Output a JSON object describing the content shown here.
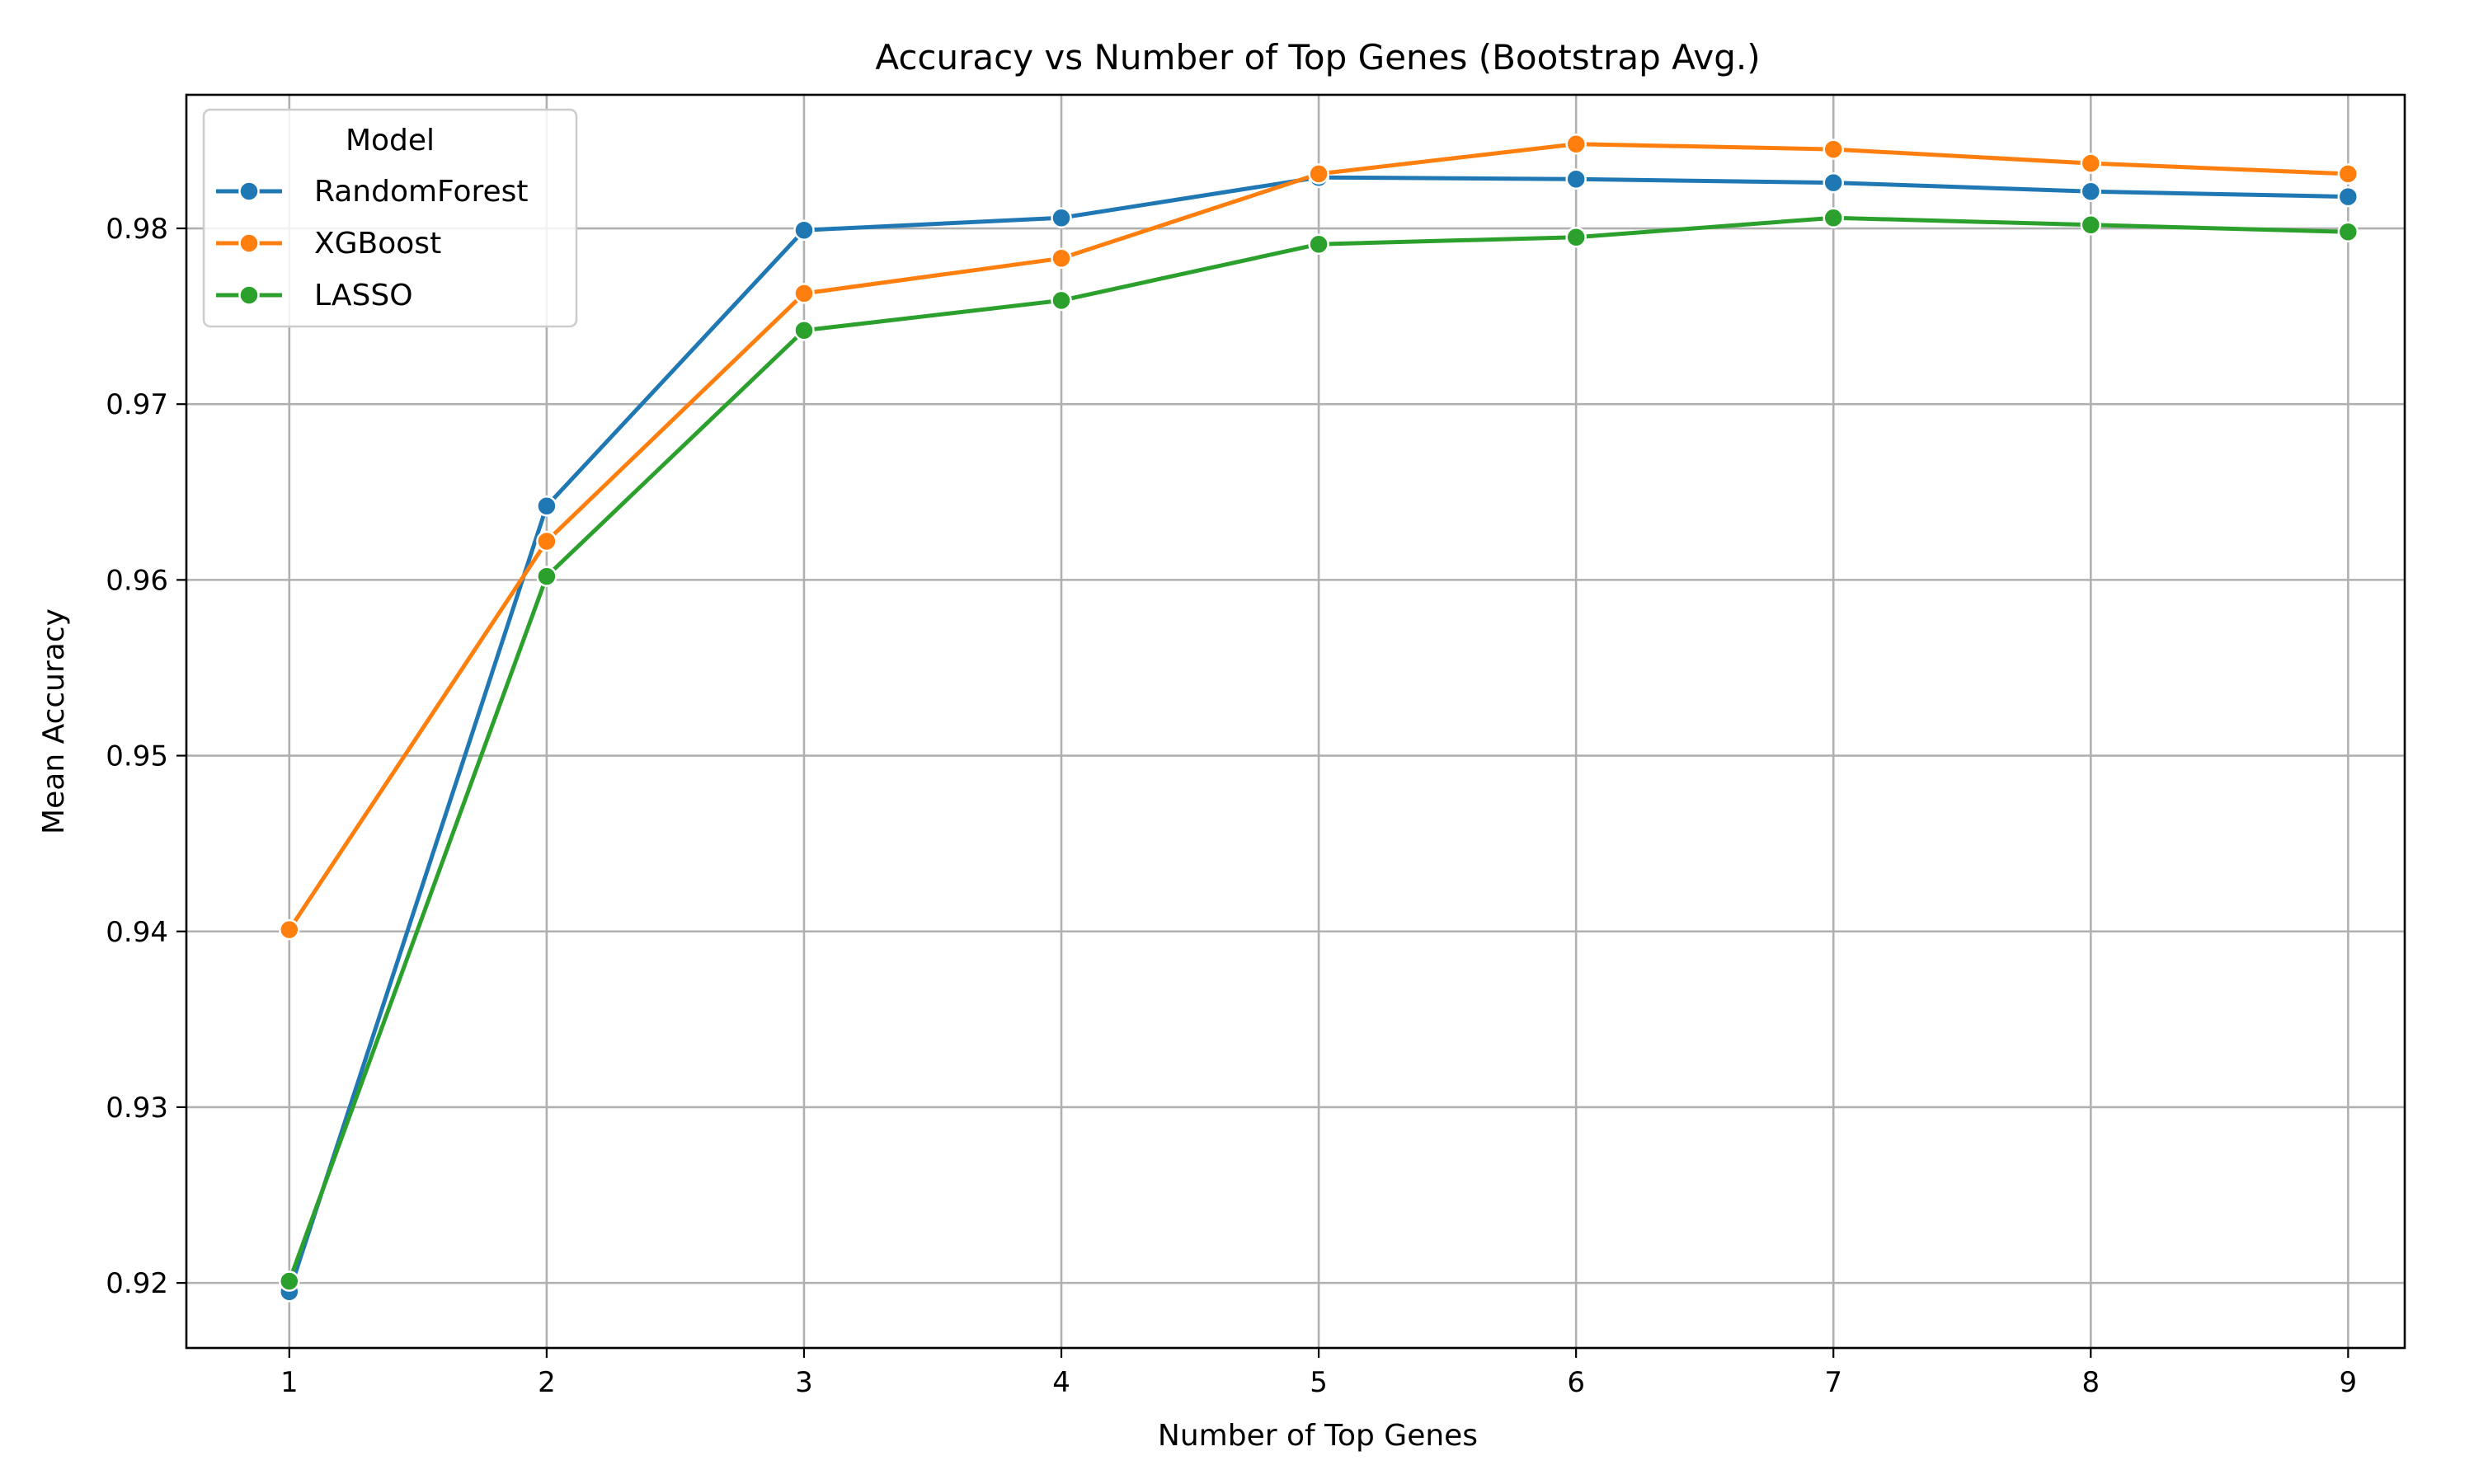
{
  "chart_data": {
    "type": "line",
    "title": "Accuracy vs Number of Top Genes (Bootstrap Avg.)",
    "xlabel": "Number of Top Genes",
    "ylabel": "Mean Accuracy",
    "x": [
      1,
      2,
      3,
      4,
      5,
      6,
      7,
      8,
      9
    ],
    "x_tick_labels": [
      "1",
      "2",
      "3",
      "4",
      "5",
      "6",
      "7",
      "8",
      "9"
    ],
    "xlim": [
      0.6,
      9.22
    ],
    "ylim": [
      0.9163,
      0.9876
    ],
    "y_ticks": [
      0.92,
      0.93,
      0.94,
      0.95,
      0.96,
      0.97,
      0.98
    ],
    "y_tick_labels": [
      "0.92",
      "0.93",
      "0.94",
      "0.95",
      "0.96",
      "0.97",
      "0.98"
    ],
    "grid": true,
    "legend": {
      "title": "Model",
      "placement": "top-left"
    },
    "series": [
      {
        "name": "RandomForest",
        "color": "#1f77b4",
        "values": [
          0.9195,
          0.9642,
          0.9799,
          0.9806,
          0.9829,
          0.9828,
          0.9826,
          0.9821,
          0.9818
        ]
      },
      {
        "name": "XGBoost",
        "color": "#ff7f0e",
        "values": [
          0.9401,
          0.9622,
          0.9763,
          0.9783,
          0.9831,
          0.9848,
          0.9845,
          0.9837,
          0.9831
        ]
      },
      {
        "name": "LASSO",
        "color": "#2ca02c",
        "values": [
          0.9201,
          0.9602,
          0.9742,
          0.9759,
          0.9791,
          0.9795,
          0.9806,
          0.9802,
          0.9798
        ]
      }
    ]
  }
}
